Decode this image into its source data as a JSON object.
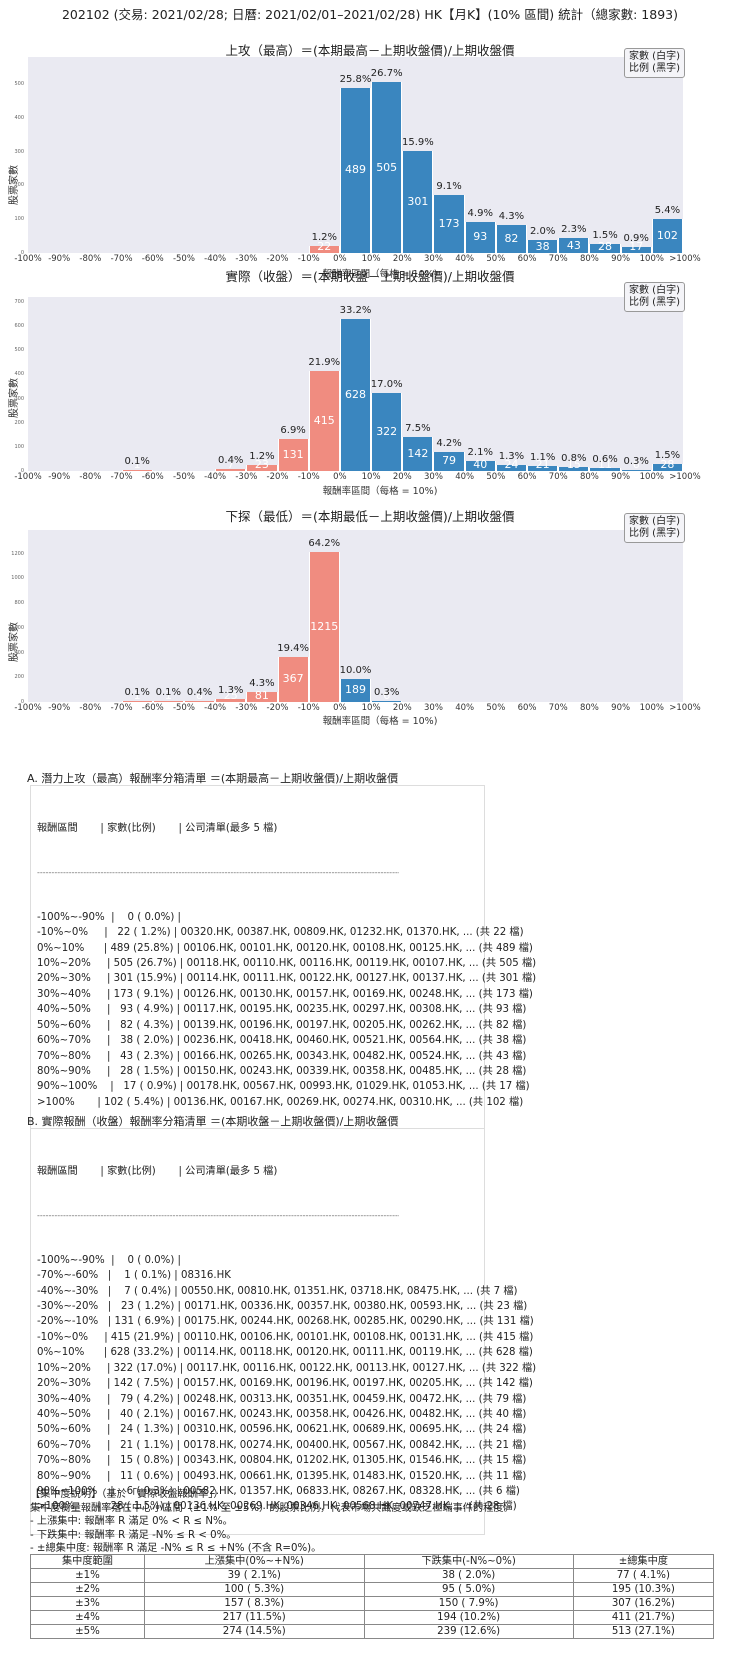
{
  "header": {
    "title": "202102 (交易: 2021/02/28; 日曆: 2021/02/01–2021/02/28) HK【月K】(10% 區間) 統計（總家數: 1893)"
  },
  "legend": {
    "line1": "家數 (白字)",
    "line2": "比例 (黑字)"
  },
  "colors": {
    "positive": "#3a86bf",
    "negative": "#f08c80",
    "plot_bg": "#eaeaf2"
  },
  "chart_data": [
    {
      "type": "bar",
      "title": "上攻（最高）＝(本期最高－上期收盤價)/上期收盤價",
      "xlabel": "報酬率區間（每格 = 10%)",
      "ylabel": "股票家數",
      "ylim": [
        0,
        580
      ],
      "yticks": [
        0,
        100,
        200,
        300,
        400,
        500
      ],
      "categories": [
        "-100%~-90%",
        "-90%~-80%",
        "-80%~-70%",
        "-70%~-60%",
        "-60%~-50%",
        "-50%~-40%",
        "-40%~-30%",
        "-30%~-20%",
        "-20%~-10%",
        "-10%~0%",
        "0%~10%",
        "10%~20%",
        "20%~30%",
        "30%~40%",
        "40%~50%",
        "50%~60%",
        "60%~70%",
        "70%~80%",
        "80%~90%",
        "90%~100%",
        ">100%"
      ],
      "values": [
        0,
        0,
        0,
        0,
        0,
        0,
        0,
        0,
        0,
        22,
        489,
        505,
        301,
        173,
        93,
        82,
        38,
        43,
        28,
        17,
        102
      ],
      "percents": [
        "",
        "",
        "",
        "",
        "",
        "",
        "",
        "",
        "",
        "1.2%",
        "25.8%",
        "26.7%",
        "15.9%",
        "9.1%",
        "4.9%",
        "4.3%",
        "2.0%",
        "2.3%",
        "1.5%",
        "0.9%",
        "5.4%"
      ],
      "xtick_labels": [
        "-100%",
        "-90%",
        "-80%",
        "-70%",
        "-60%",
        "-50%",
        "-40%",
        "-30%",
        "-20%",
        "-10%",
        "0%",
        "10%",
        "20%",
        "30%",
        "40%",
        "50%",
        "60%",
        "70%",
        "80%",
        "90%",
        "100%",
        ">100%"
      ]
    },
    {
      "type": "bar",
      "title": "實際（收盤）＝(本期收盤－上期收盤價)/上期收盤價",
      "xlabel": "報酬率區間（每格 = 10%)",
      "ylabel": "股票家數",
      "ylim": [
        0,
        720
      ],
      "yticks": [
        0,
        100,
        200,
        300,
        400,
        500,
        600,
        700
      ],
      "categories": [
        "-100%~-90%",
        "-90%~-80%",
        "-80%~-70%",
        "-70%~-60%",
        "-60%~-50%",
        "-50%~-40%",
        "-40%~-30%",
        "-30%~-20%",
        "-20%~-10%",
        "-10%~0%",
        "0%~10%",
        "10%~20%",
        "20%~30%",
        "30%~40%",
        "40%~50%",
        "50%~60%",
        "60%~70%",
        "70%~80%",
        "80%~90%",
        "90%~100%",
        ">100%"
      ],
      "values": [
        0,
        0,
        0,
        1,
        0,
        0,
        7,
        23,
        131,
        415,
        628,
        322,
        142,
        79,
        40,
        24,
        21,
        15,
        11,
        6,
        28
      ],
      "percents": [
        "",
        "",
        "",
        "0.1%",
        "",
        "",
        "0.4%",
        "1.2%",
        "6.9%",
        "21.9%",
        "33.2%",
        "17.0%",
        "7.5%",
        "4.2%",
        "2.1%",
        "1.3%",
        "1.1%",
        "0.8%",
        "0.6%",
        "0.3%",
        "1.5%"
      ],
      "xtick_labels": [
        "-100%",
        "-90%",
        "-80%",
        "-70%",
        "-60%",
        "-50%",
        "-40%",
        "-30%",
        "-20%",
        "-10%",
        "0%",
        "10%",
        "20%",
        "30%",
        "40%",
        "50%",
        "60%",
        "70%",
        "80%",
        "90%",
        "100%",
        ">100%"
      ]
    },
    {
      "type": "bar",
      "title": "下探（最低）＝(本期最低－上期收盤價)/上期收盤價",
      "xlabel": "報酬率區間（每格 = 10%)",
      "ylabel": "股票家數",
      "ylim": [
        0,
        1390
      ],
      "yticks": [
        0,
        200,
        400,
        600,
        800,
        1000,
        1200
      ],
      "categories": [
        "-100%~-90%",
        "-90%~-80%",
        "-80%~-70%",
        "-70%~-60%",
        "-60%~-50%",
        "-50%~-40%",
        "-40%~-30%",
        "-30%~-20%",
        "-20%~-10%",
        "-10%~0%",
        "0%~10%",
        "10%~20%",
        "20%~30%",
        "30%~40%",
        "40%~50%",
        "50%~60%",
        "60%~70%",
        "70%~80%",
        "80%~90%",
        "90%~100%",
        ">100%"
      ],
      "values": [
        0,
        0,
        0,
        1,
        1,
        8,
        25,
        81,
        367,
        1215,
        189,
        6,
        0,
        0,
        0,
        0,
        0,
        0,
        0,
        0,
        0
      ],
      "percents": [
        "",
        "",
        "",
        "0.1%",
        "0.1%",
        "0.4%",
        "1.3%",
        "4.3%",
        "19.4%",
        "64.2%",
        "10.0%",
        "0.3%",
        "",
        "",
        "",
        "",
        "",
        "",
        "",
        "",
        ""
      ],
      "xtick_labels": [
        "-100%",
        "-90%",
        "-80%",
        "-70%",
        "-60%",
        "-50%",
        "-40%",
        "-30%",
        "-20%",
        "-10%",
        "0%",
        "10%",
        "20%",
        "30%",
        "40%",
        "50%",
        "60%",
        "70%",
        "80%",
        "90%",
        "100%",
        ">100%"
      ]
    }
  ],
  "list_a": {
    "title": "A. 潛力上攻（最高）報酬率分箱清單 ＝(本期最高－上期收盤價)/上期收盤價",
    "header": "報酬區間       | 家數(比例)       | 公司清單(最多 5 檔)",
    "separator": "----------------------------------------------------------------------------------------------------------------------------------",
    "rows": [
      "-100%~-90%  |    0 ( 0.0%) |",
      "-10%~0%     |   22 ( 1.2%) | 00320.HK, 00387.HK, 00809.HK, 01232.HK, 01370.HK, ... (共 22 檔)",
      "0%~10%      | 489 (25.8%) | 00106.HK, 00101.HK, 00120.HK, 00108.HK, 00125.HK, ... (共 489 檔)",
      "10%~20%     | 505 (26.7%) | 00118.HK, 00110.HK, 00116.HK, 00119.HK, 00107.HK, ... (共 505 檔)",
      "20%~30%     | 301 (15.9%) | 00114.HK, 00111.HK, 00122.HK, 00127.HK, 00137.HK, ... (共 301 檔)",
      "30%~40%     | 173 ( 9.1%) | 00126.HK, 00130.HK, 00157.HK, 00169.HK, 00248.HK, ... (共 173 檔)",
      "40%~50%     |   93 ( 4.9%) | 00117.HK, 00195.HK, 00235.HK, 00297.HK, 00308.HK, ... (共 93 檔)",
      "50%~60%     |   82 ( 4.3%) | 00139.HK, 00196.HK, 00197.HK, 00205.HK, 00262.HK, ... (共 82 檔)",
      "60%~70%     |   38 ( 2.0%) | 00236.HK, 00418.HK, 00460.HK, 00521.HK, 00564.HK, ... (共 38 檔)",
      "70%~80%     |   43 ( 2.3%) | 00166.HK, 00265.HK, 00343.HK, 00482.HK, 00524.HK, ... (共 43 檔)",
      "80%~90%     |   28 ( 1.5%) | 00150.HK, 00243.HK, 00339.HK, 00358.HK, 00485.HK, ... (共 28 檔)",
      "90%~100%    |   17 ( 0.9%) | 00178.HK, 00567.HK, 00993.HK, 01029.HK, 01053.HK, ... (共 17 檔)",
      ">100%       | 102 ( 5.4%) | 00136.HK, 00167.HK, 00269.HK, 00274.HK, 00310.HK, ... (共 102 檔)"
    ]
  },
  "list_b": {
    "title": "B. 實際報酬（收盤）報酬率分箱清單 ＝(本期收盤－上期收盤價)/上期收盤價",
    "header": "報酬區間       | 家數(比例)       | 公司清單(最多 5 檔)",
    "separator": "----------------------------------------------------------------------------------------------------------------------------------",
    "rows": [
      "-100%~-90%  |    0 ( 0.0%) |",
      "-70%~-60%   |    1 ( 0.1%) | 08316.HK",
      "-40%~-30%   |    7 ( 0.4%) | 00550.HK, 00810.HK, 01351.HK, 03718.HK, 08475.HK, ... (共 7 檔)",
      "-30%~-20%   |   23 ( 1.2%) | 00171.HK, 00336.HK, 00357.HK, 00380.HK, 00593.HK, ... (共 23 檔)",
      "-20%~-10%   | 131 ( 6.9%) | 00175.HK, 00244.HK, 00268.HK, 00285.HK, 00290.HK, ... (共 131 檔)",
      "-10%~0%     | 415 (21.9%) | 00110.HK, 00106.HK, 00101.HK, 00108.HK, 00131.HK, ... (共 415 檔)",
      "0%~10%      | 628 (33.2%) | 00114.HK, 00118.HK, 00120.HK, 00111.HK, 00119.HK, ... (共 628 檔)",
      "10%~20%     | 322 (17.0%) | 00117.HK, 00116.HK, 00122.HK, 00113.HK, 00127.HK, ... (共 322 檔)",
      "20%~30%     | 142 ( 7.5%) | 00157.HK, 00169.HK, 00196.HK, 00197.HK, 00205.HK, ... (共 142 檔)",
      "30%~40%     |   79 ( 4.2%) | 00248.HK, 00313.HK, 00351.HK, 00459.HK, 00472.HK, ... (共 79 檔)",
      "40%~50%     |   40 ( 2.1%) | 00167.HK, 00243.HK, 00358.HK, 00426.HK, 00482.HK, ... (共 40 檔)",
      "50%~60%     |   24 ( 1.3%) | 00310.HK, 00596.HK, 00621.HK, 00689.HK, 00695.HK, ... (共 24 檔)",
      "60%~70%     |   21 ( 1.1%) | 00178.HK, 00274.HK, 00400.HK, 00567.HK, 00842.HK, ... (共 21 檔)",
      "70%~80%     |   15 ( 0.8%) | 00343.HK, 00804.HK, 01202.HK, 01305.HK, 01546.HK, ... (共 15 檔)",
      "80%~90%     |   11 ( 0.6%) | 00493.HK, 00661.HK, 01395.HK, 01483.HK, 01520.HK, ... (共 11 檔)",
      "90%~100%    |    6 ( 0.3%) | 00582.HK, 01357.HK, 06833.HK, 08267.HK, 08328.HK, ... (共 6 檔)",
      ">100%       |   28 ( 1.5%) | 00136.HK, 00269.HK, 00346.HK, 00568.HK, 00747.HK, ... (共 28 檔)"
    ]
  },
  "concentration": {
    "title": "【集中度說明】（基於「實際收盤報酬率」）",
    "desc": "集中度衡量報酬率落在中心小區間（±1% 至 ±5%）的股票比例，代表市場共識度或缺乏極端事件的程度。",
    "rule_up": " - 上漲集中: 報酬率 R 滿足 0% < R ≤ N%。",
    "rule_down": " - 下跌集中: 報酬率 R 滿足 -N% ≤ R < 0%。",
    "rule_total": " - ±總集中度: 報酬率 R 滿足 -N% ≤ R ≤ +N% (不含 R=0%)。",
    "columns": [
      "集中度範圍",
      "上漲集中(0%~+N%)",
      "下跌集中(-N%~0%)",
      "±總集中度"
    ],
    "rows": [
      [
        "±1%",
        "39 ( 2.1%)",
        "38 ( 2.0%)",
        "77 ( 4.1%)"
      ],
      [
        "±2%",
        "100 ( 5.3%)",
        "95 ( 5.0%)",
        "195 (10.3%)"
      ],
      [
        "±3%",
        "157 ( 8.3%)",
        "150 ( 7.9%)",
        "307 (16.2%)"
      ],
      [
        "±4%",
        "217 (11.5%)",
        "194 (10.2%)",
        "411 (21.7%)"
      ],
      [
        "±5%",
        "274 (14.5%)",
        "239 (12.6%)",
        "513 (27.1%)"
      ]
    ]
  }
}
